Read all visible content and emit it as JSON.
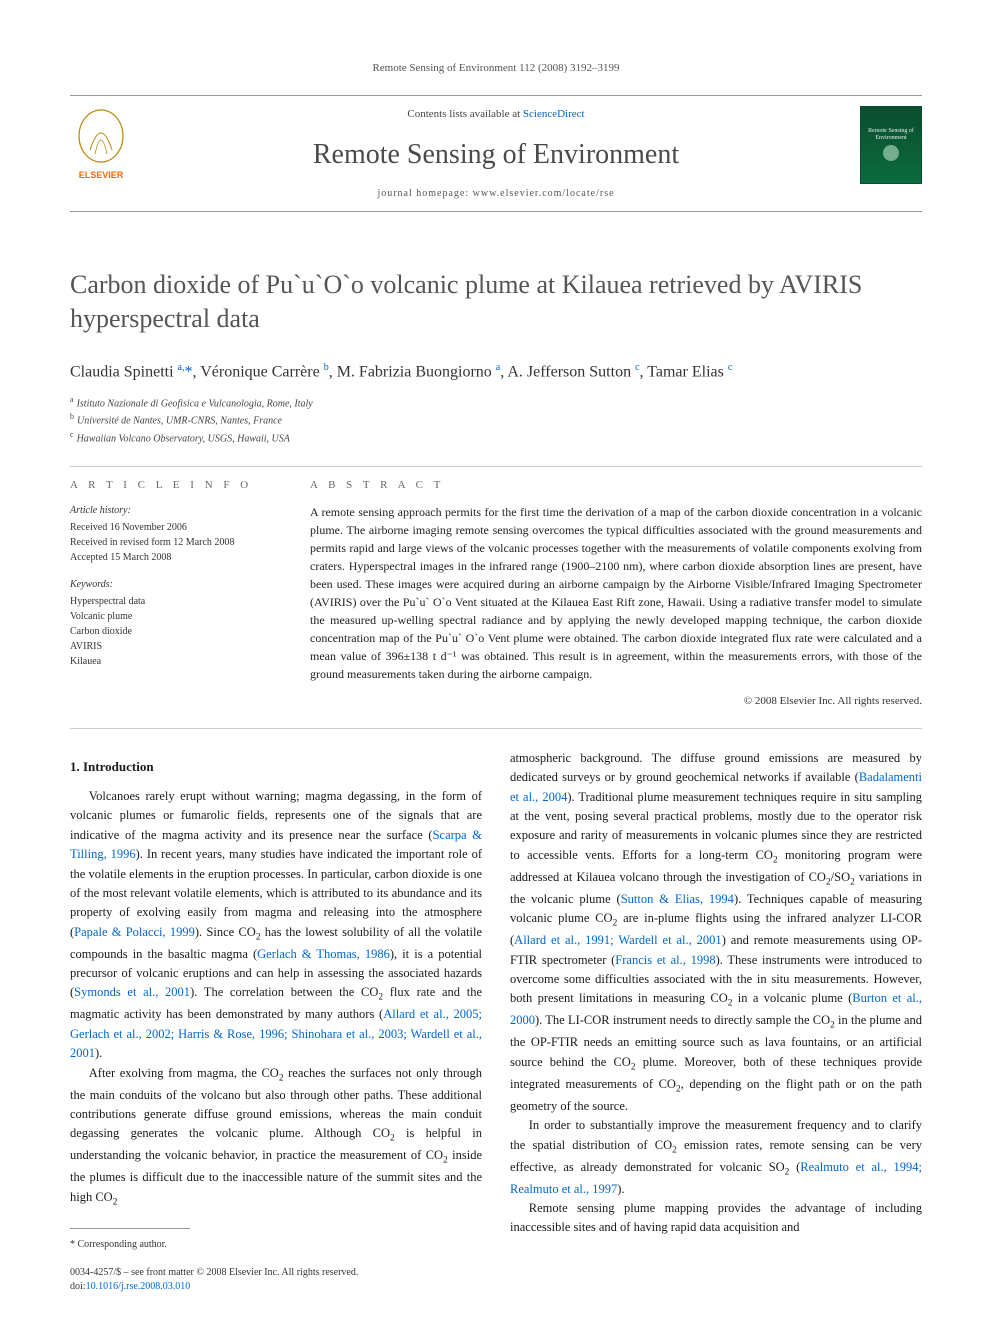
{
  "running_header": "Remote Sensing of Environment 112 (2008) 3192–3199",
  "masthead": {
    "contents_prefix": "Contents lists available at ",
    "contents_link": "ScienceDirect",
    "journal_title": "Remote Sensing of Environment",
    "homepage_prefix": "journal homepage: ",
    "homepage_url": "www.elsevier.com/locate/rse",
    "publisher_name": "ELSEVIER",
    "cover_text": "Remote Sensing of Environment"
  },
  "colors": {
    "link": "#0066cc",
    "title_gray": "#555555",
    "elsevier_orange": "#ff6600",
    "cover_green_dark": "#0b4d2f",
    "cover_green_light": "#0b6b3f"
  },
  "article": {
    "title": "Carbon dioxide of Pu`u`O`o volcanic plume at Kilauea retrieved by AVIRIS hyperspectral data",
    "authors_html": "Claudia Spinetti <sup>a,</sup><span class='corr'>*</span>, Véronique Carrère <sup>b</sup>, M. Fabrizia Buongiorno <sup>a</sup>, A. Jefferson Sutton <sup>c</sup>, Tamar Elias <sup>c</sup>",
    "affiliations": [
      {
        "sup": "a",
        "text": "Istituto Nazionale di Geofisica e Vulcanologia, Rome, Italy"
      },
      {
        "sup": "b",
        "text": "Université de Nantes, UMR-CNRS, Nantes, France"
      },
      {
        "sup": "c",
        "text": "Hawaiian Volcano Observatory, USGS, Hawaii, USA"
      }
    ]
  },
  "article_info": {
    "heading": "A R T I C L E   I N F O",
    "history_label": "Article history:",
    "received": "Received 16 November 2006",
    "revised": "Received in revised form 12 March 2008",
    "accepted": "Accepted 15 March 2008",
    "keywords_label": "Keywords:",
    "keywords": [
      "Hyperspectral data",
      "Volcanic plume",
      "Carbon dioxide",
      "AVIRIS",
      "Kilauea"
    ]
  },
  "abstract": {
    "heading": "A B S T R A C T",
    "text": "A remote sensing approach permits for the first time the derivation of a map of the carbon dioxide concentration in a volcanic plume. The airborne imaging remote sensing overcomes the typical difficulties associated with the ground measurements and permits rapid and large views of the volcanic processes together with the measurements of volatile components exolving from craters. Hyperspectral images in the infrared range (1900–2100 nm), where carbon dioxide absorption lines are present, have been used. These images were acquired during an airborne campaign by the Airborne Visible/Infrared Imaging Spectrometer (AVIRIS) over the Pu`u` O`o Vent situated at the Kilauea East Rift zone, Hawaii. Using a radiative transfer model to simulate the measured up-welling spectral radiance and by applying the newly developed mapping technique, the carbon dioxide concentration map of the Pu`u` O`o Vent plume were obtained. The carbon dioxide integrated flux rate were calculated and a mean value of 396±138 t d⁻¹ was obtained. This result is in agreement, within the measurements errors, with those of the ground measurements taken during the airborne campaign.",
    "copyright": "© 2008 Elsevier Inc. All rights reserved."
  },
  "section1": {
    "heading": "1. Introduction",
    "p1_pre": "Volcanoes rarely erupt without warning; magma degassing, in the form of volcanic plumes or fumarolic fields, represents one of the signals that are indicative of the magma activity and its presence near the surface (",
    "c1": "Scarpa & Tilling, 1996",
    "p1_mid1": "). In recent years, many studies have indicated the important role of the volatile elements in the eruption processes. In particular, carbon dioxide is one of the most relevant volatile elements, which is attributed to its abundance and its property of exolving easily from magma and releasing into the atmosphere (",
    "c2": "Papale & Polacci, 1999",
    "p1_mid2": "). Since CO",
    "p1_mid3": " has the lowest solubility of all the volatile compounds in the basaltic magma (",
    "c3": "Gerlach & Thomas, 1986",
    "p1_mid4": "), it is a potential precursor of volcanic eruptions and can help in assessing the associated hazards (",
    "c4": "Symonds et al., 2001",
    "p1_mid5": "). The correlation between the CO",
    "p1_mid6": " flux rate and the magmatic activity has been demonstrated by many authors (",
    "c5": "Allard et al., 2005; Gerlach et al., 2002; Harris & Rose, 1996; Shinohara et al., 2003; Wardell et al., 2001",
    "p1_end": ").",
    "p2_pre": "After exolving from magma, the CO",
    "p2_mid": " reaches the surfaces not only through the main conduits of the volcano but also through other paths. These additional contributions generate diffuse ground emissions, whereas the main conduit degassing generates the volcanic plume. Although CO",
    "p2_mid2": " is helpful in understanding the volcanic behavior, in practice the measurement of CO",
    "p2_mid3": " inside the plumes is difficult due to the inaccessible nature of the summit sites and the high CO",
    "p2_end": ""
  },
  "col2": {
    "p1_pre": "atmospheric background. The diffuse ground emissions are measured by dedicated surveys or by ground geochemical networks if available (",
    "c1": "Badalamenti et al., 2004",
    "p1_mid1": "). Traditional plume measurement techniques require in situ sampling at the vent, posing several practical problems, mostly due to the operator risk exposure and rarity of measurements in volcanic plumes since they are restricted to accessible vents. Efforts for a long-term CO",
    "p1_mid2": " monitoring program were addressed at Kilauea volcano through the investigation of CO",
    "p1_mid3": "/SO",
    "p1_mid4": " variations in the volcanic plume (",
    "c2": "Sutton & Elias, 1994",
    "p1_mid5": "). Techniques capable of measuring volcanic plume CO",
    "p1_mid6": " are in-plume flights using the infrared analyzer LI-COR (",
    "c3": "Allard et al., 1991; Wardell et al., 2001",
    "p1_mid7": ") and remote measurements using OP-FTIR spectrometer (",
    "c4": "Francis et al., 1998",
    "p1_mid8": "). These instruments were introduced to overcome some difficulties associated with the in situ measurements. However, both present limitations in measuring CO",
    "p1_mid9": " in a volcanic plume (",
    "c5": "Burton et al., 2000",
    "p1_mid10": "). The LI-COR instrument needs to directly sample the CO",
    "p1_mid11": " in the plume and the OP-FTIR needs an emitting source such as lava fountains, or an artificial source behind the CO",
    "p1_mid12": " plume. Moreover, both of these techniques provide integrated measurements of CO",
    "p1_mid13": ", depending on the flight path or on the path geometry of the source.",
    "p2_pre": "In order to substantially improve the measurement frequency and to clarify the spatial distribution of CO",
    "p2_mid1": " emission rates, remote sensing can be very effective, as already demonstrated for volcanic SO",
    "p2_mid2": " (",
    "c6": "Realmuto et al., 1994; Realmuto et al., 1997",
    "p2_end": ").",
    "p3": "Remote sensing plume mapping provides the advantage of including inaccessible sites and of having rapid data acquisition and"
  },
  "frontmatter": {
    "corresponding": "* Corresponding author.",
    "issn_line": "0034-4257/$ – see front matter © 2008 Elsevier Inc. All rights reserved.",
    "doi_prefix": "doi:",
    "doi": "10.1016/j.rse.2008.03.010"
  }
}
